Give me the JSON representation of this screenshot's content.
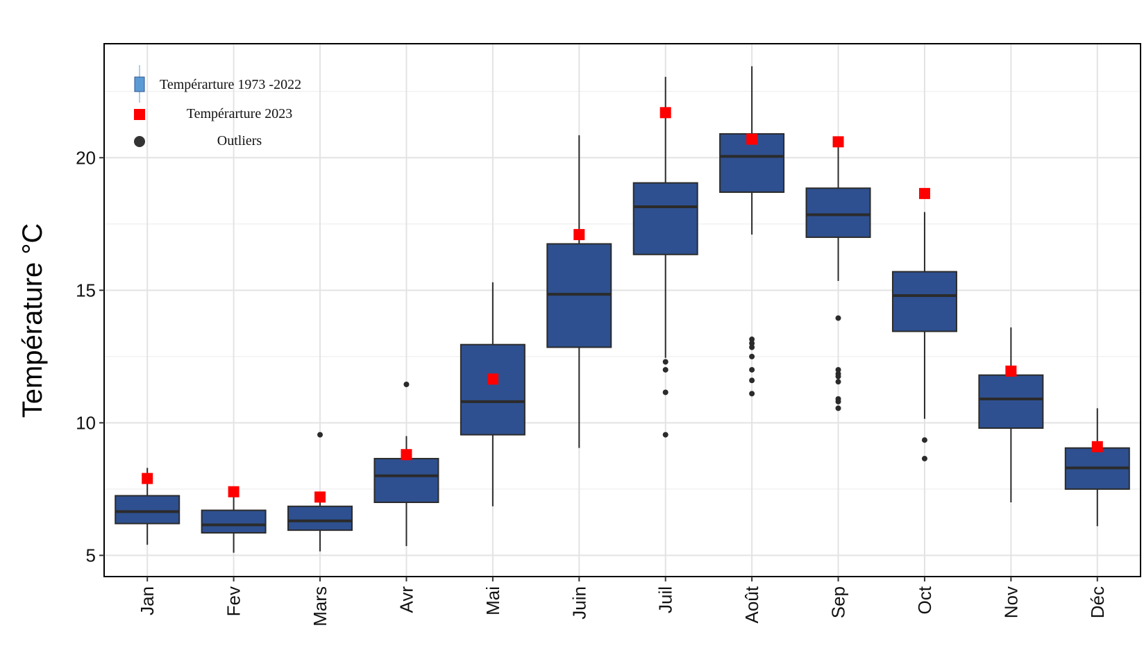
{
  "chart_data": {
    "type": "box",
    "title": "",
    "xlabel": "",
    "ylabel": "Température °C",
    "ylim": [
      4.2,
      24.3
    ],
    "yticks": [
      5,
      10,
      15,
      20
    ],
    "grid": true,
    "legend_position": "top-left",
    "categories": [
      "Jan",
      "Fev",
      "Mars",
      "Avr",
      "Mai",
      "Juin",
      "Juil",
      "Août",
      "Sep",
      "Oct",
      "Nov",
      "Déc"
    ],
    "series": [
      {
        "name": "Tempérarture 1973 -2022",
        "color": "#2e5090",
        "boxes": [
          {
            "q1": 6.2,
            "median": 6.65,
            "q3": 7.25,
            "whisker_low": 5.4,
            "whisker_high": 8.3
          },
          {
            "q1": 5.85,
            "median": 6.15,
            "q3": 6.7,
            "whisker_low": 5.1,
            "whisker_high": 7.6
          },
          {
            "q1": 5.95,
            "median": 6.3,
            "q3": 6.85,
            "whisker_low": 5.15,
            "whisker_high": 7.25
          },
          {
            "q1": 7.0,
            "median": 8.0,
            "q3": 8.65,
            "whisker_low": 5.35,
            "whisker_high": 9.5
          },
          {
            "q1": 9.55,
            "median": 10.8,
            "q3": 12.95,
            "whisker_low": 6.85,
            "whisker_high": 15.3
          },
          {
            "q1": 12.85,
            "median": 14.85,
            "q3": 16.75,
            "whisker_low": 9.05,
            "whisker_high": 20.85
          },
          {
            "q1": 16.35,
            "median": 18.15,
            "q3": 19.05,
            "whisker_low": 12.45,
            "whisker_high": 23.05
          },
          {
            "q1": 18.7,
            "median": 20.05,
            "q3": 20.9,
            "whisker_low": 17.1,
            "whisker_high": 23.45
          },
          {
            "q1": 17.0,
            "median": 17.85,
            "q3": 18.85,
            "whisker_low": 15.35,
            "whisker_high": 20.6
          },
          {
            "q1": 13.45,
            "median": 14.8,
            "q3": 15.7,
            "whisker_low": 10.15,
            "whisker_high": 17.95
          },
          {
            "q1": 9.8,
            "median": 10.9,
            "q3": 11.8,
            "whisker_low": 7.0,
            "whisker_high": 13.6
          },
          {
            "q1": 7.5,
            "median": 8.3,
            "q3": 9.05,
            "whisker_low": 6.1,
            "whisker_high": 10.55
          }
        ]
      },
      {
        "name": "Tempérarture 2023",
        "color": "#ff0000",
        "values": [
          7.9,
          7.4,
          7.2,
          8.8,
          11.65,
          17.1,
          21.7,
          20.7,
          20.6,
          18.65,
          11.95,
          9.1
        ]
      }
    ],
    "outliers": [
      {
        "category": "Mars",
        "values": [
          9.55
        ]
      },
      {
        "category": "Avr",
        "values": [
          11.45
        ]
      },
      {
        "category": "Juil",
        "values": [
          12.3,
          12.0,
          11.15,
          9.55
        ]
      },
      {
        "category": "Août",
        "values": [
          13.15,
          13.0,
          12.85,
          12.5,
          12.0,
          11.6,
          11.1
        ]
      },
      {
        "category": "Sep",
        "values": [
          13.95,
          12.0,
          11.85,
          11.75,
          11.55,
          10.9,
          10.8,
          10.55
        ]
      },
      {
        "category": "Oct",
        "values": [
          9.35,
          8.65
        ]
      }
    ],
    "legend": [
      {
        "label": "Tempérarture 1973 -2022",
        "symbol": "box",
        "color": "#5b9bd5"
      },
      {
        "label": "Tempérarture 2023",
        "symbol": "square",
        "color": "#ff0000"
      },
      {
        "label": "Outliers",
        "symbol": "circle",
        "color": "#333333"
      }
    ]
  }
}
